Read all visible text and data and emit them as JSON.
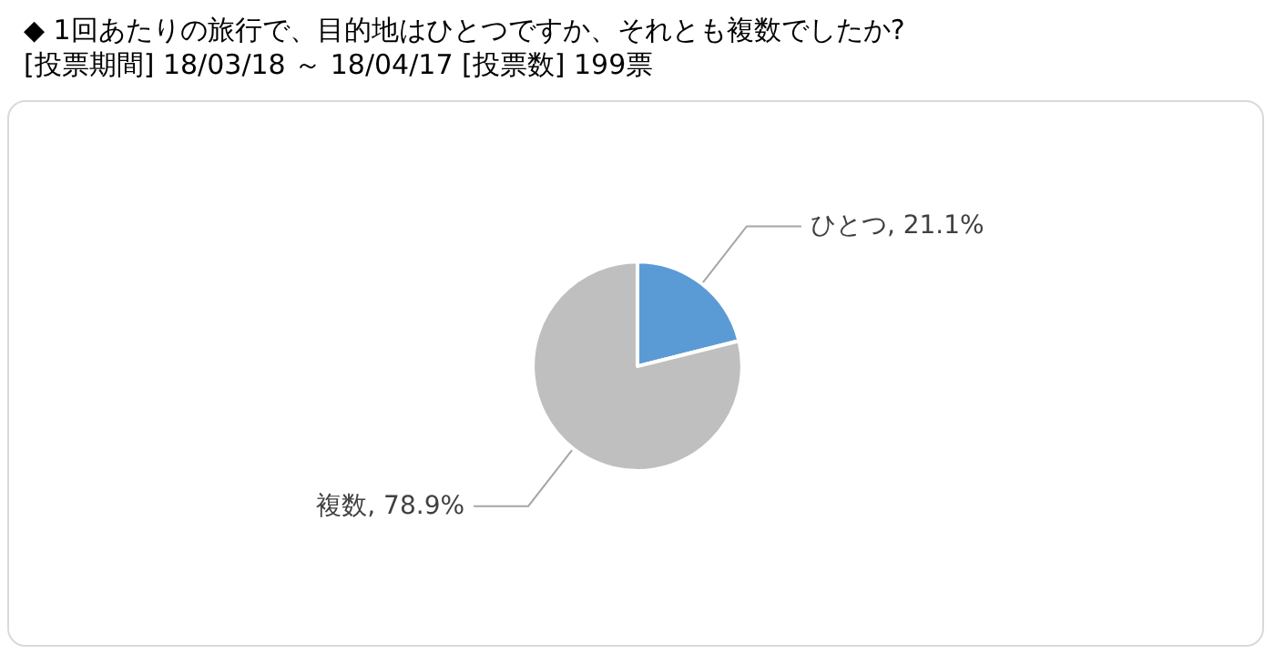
{
  "chart_data": {
    "type": "pie",
    "title": "◆ 1回あたりの旅行で、目的地はひとつですか、それとも複数でしたか?",
    "subtitle": "[投票期間] 18/03/18 ～ 18/04/17 [投票数] 199票",
    "categories": [
      "ひとつ",
      "複数"
    ],
    "values": [
      21.1,
      78.9
    ],
    "colors": [
      "#5b9bd5",
      "#bfbfbf"
    ],
    "value_labels": [
      "21.1%",
      "78.9%"
    ],
    "legend": false
  }
}
